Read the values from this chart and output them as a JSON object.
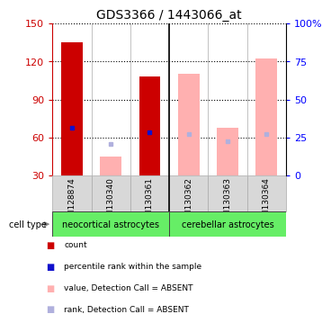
{
  "title": "GDS3366 / 1443066_at",
  "samples": [
    "GSM128874",
    "GSM130340",
    "GSM130361",
    "GSM130362",
    "GSM130363",
    "GSM130364"
  ],
  "cell_type_groups": [
    {
      "label": "neocortical astrocytes",
      "color": "#66ee66"
    },
    {
      "label": "cerebellar astrocytes",
      "color": "#66ee66"
    }
  ],
  "bars": {
    "red_values": [
      135,
      null,
      108,
      null,
      null,
      null
    ],
    "pink_values": [
      null,
      45,
      null,
      110,
      68,
      122
    ],
    "blue_squares": [
      68,
      null,
      64,
      null,
      null,
      null
    ],
    "lightblue_squares": [
      null,
      55,
      null,
      63,
      57,
      63
    ]
  },
  "ylim": [
    30,
    150
  ],
  "yticks": [
    30,
    60,
    90,
    120,
    150
  ],
  "y2lim": [
    0,
    100
  ],
  "y2ticks": [
    0,
    25,
    50,
    75,
    100
  ],
  "y2ticklabels": [
    "0",
    "25",
    "50",
    "75",
    "100%"
  ],
  "red_color": "#cc0000",
  "pink_color": "#ffb0b0",
  "blue_color": "#1010cc",
  "lightblue_color": "#b0b0dd",
  "bar_width": 0.55,
  "bg_color": "#d8d8d8",
  "plot_bg": "#ffffff",
  "legend_items": [
    {
      "label": "count",
      "color": "#cc0000"
    },
    {
      "label": "percentile rank within the sample",
      "color": "#1010cc"
    },
    {
      "label": "value, Detection Call = ABSENT",
      "color": "#ffb0b0"
    },
    {
      "label": "rank, Detection Call = ABSENT",
      "color": "#b0b0dd"
    }
  ]
}
